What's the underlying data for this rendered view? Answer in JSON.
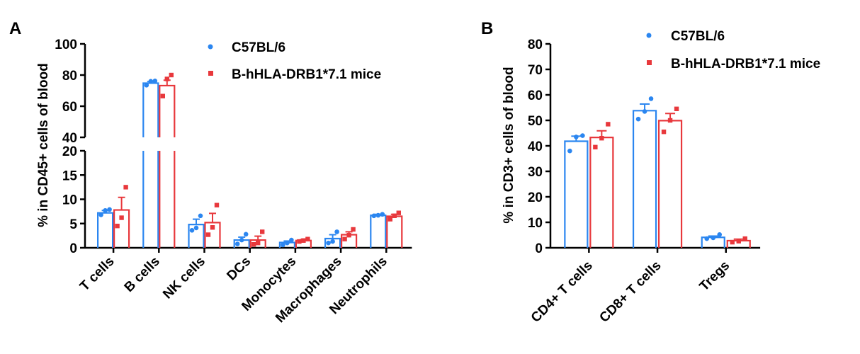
{
  "colors": {
    "c57": "#2b86f0",
    "hla": "#e8383c",
    "axis": "#000000"
  },
  "chart_data": [
    {
      "panel": "A",
      "type": "bar",
      "ylabel": "% in CD45+ cells of blood",
      "categories": [
        "T cells",
        "B cells",
        "NK cells",
        "DCs",
        "Monocytes",
        "Macrophages",
        "Neutrophils"
      ],
      "y_axis_segments": [
        {
          "range": [
            0,
            20
          ],
          "ticks": [
            0,
            5,
            10,
            15,
            20
          ]
        },
        {
          "range": [
            40,
            100
          ],
          "ticks": [
            40,
            60,
            80,
            100
          ]
        }
      ],
      "legend": {
        "position": "top-right"
      },
      "series": [
        {
          "name": "C57BL/6",
          "color": "#2b86f0",
          "values": [
            7.2,
            74.8,
            4.8,
            1.6,
            1.1,
            1.9,
            6.7
          ],
          "sem": [
            0.5,
            1.0,
            1.1,
            0.6,
            0.3,
            0.8,
            0.2
          ],
          "points": [
            [
              6.8,
              7.7,
              7.9
            ],
            [
              73.5,
              76.0,
              76.2
            ],
            [
              3.6,
              4.1,
              6.6
            ],
            [
              0.8,
              1.6,
              2.8
            ],
            [
              0.6,
              1.0,
              1.6
            ],
            [
              1.0,
              1.3,
              3.3
            ],
            [
              6.6,
              6.7,
              6.9
            ]
          ]
        },
        {
          "name": "B-hHLA-DRB1*7.1 mice",
          "color": "#e8383c",
          "values": [
            7.8,
            73.2,
            5.2,
            1.6,
            1.5,
            2.7,
            6.5
          ],
          "sem": [
            2.6,
            3.5,
            1.9,
            0.8,
            0.2,
            0.6,
            0.4
          ],
          "points": [
            [
              4.5,
              6.2,
              12.5
            ],
            [
              66.5,
              77.5,
              80.0
            ],
            [
              2.7,
              4.2,
              8.8
            ],
            [
              0.7,
              1.0,
              3.3
            ],
            [
              1.3,
              1.5,
              1.8
            ],
            [
              1.8,
              2.6,
              3.8
            ],
            [
              5.9,
              6.6,
              7.2
            ]
          ]
        }
      ]
    },
    {
      "panel": "B",
      "type": "bar",
      "ylabel": "% in CD3+ cells of blood",
      "categories": [
        "CD4+ T cells",
        "CD8+ T cells",
        "Tregs"
      ],
      "ylim": [
        0,
        80
      ],
      "yticks": [
        0,
        10,
        20,
        30,
        40,
        50,
        60,
        70,
        80
      ],
      "legend": {
        "position": "top-right"
      },
      "series": [
        {
          "name": "C57BL/6",
          "color": "#2b86f0",
          "values": [
            41.8,
            53.8,
            4.1
          ],
          "sem": [
            2.0,
            2.6,
            0.5
          ],
          "points": [
            [
              38.0,
              43.5,
              44.0
            ],
            [
              50.5,
              53.5,
              58.5
            ],
            [
              3.6,
              3.9,
              5.2
            ]
          ]
        },
        {
          "name": "B-hHLA-DRB1*7.1 mice",
          "color": "#e8383c",
          "values": [
            43.3,
            49.9,
            2.8
          ],
          "sem": [
            2.6,
            2.8,
            0.6
          ],
          "points": [
            [
              39.5,
              43.0,
              48.5
            ],
            [
              45.5,
              50.0,
              54.5
            ],
            [
              2.2,
              2.6,
              3.6
            ]
          ]
        }
      ]
    }
  ]
}
